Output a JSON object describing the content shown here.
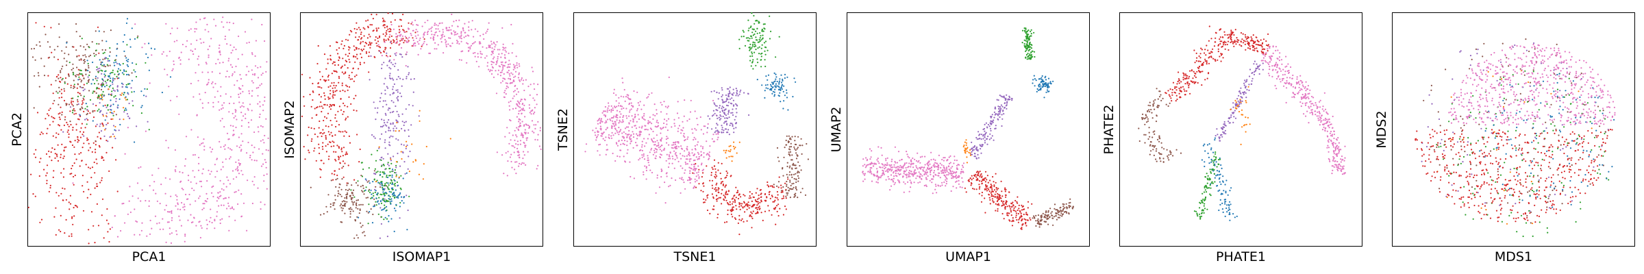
{
  "chart_data": [
    {
      "type": "scatter",
      "xlabel": "PCA1",
      "ylabel": "PCA2",
      "xlim": [
        0,
        100
      ],
      "ylim": [
        0,
        100
      ],
      "grid": false,
      "colors": [
        "#1f77b4",
        "#ff7f0e",
        "#2ca02c",
        "#d62728",
        "#9467bd",
        "#8c564b",
        "#e377c2"
      ],
      "clusters": [
        {
          "color": "#e377c2",
          "type": "arc",
          "cx": 58,
          "cy": 52,
          "rx": 36,
          "ry": 36,
          "a0": 250,
          "a1": 440,
          "spread": 11,
          "n": 650
        },
        {
          "color": "#d62728",
          "type": "blob",
          "cx": 18,
          "cy": 42,
          "sx": 9,
          "sy": 24,
          "n": 330
        },
        {
          "color": "#8c564b",
          "type": "blob",
          "cx": 22,
          "cy": 77,
          "sx": 9,
          "sy": 10,
          "n": 170
        },
        {
          "color": "#2ca02c",
          "type": "blob",
          "cx": 30,
          "cy": 70,
          "sx": 8,
          "sy": 9,
          "n": 110
        },
        {
          "color": "#1f77b4",
          "type": "blob",
          "cx": 38,
          "cy": 74,
          "sx": 8,
          "sy": 10,
          "n": 110
        },
        {
          "color": "#9467bd",
          "type": "blob",
          "cx": 32,
          "cy": 62,
          "sx": 7,
          "sy": 10,
          "n": 80
        },
        {
          "color": "#ff7f0e",
          "type": "blob",
          "cx": 33,
          "cy": 58,
          "sx": 4,
          "sy": 6,
          "n": 20
        }
      ]
    },
    {
      "type": "scatter",
      "xlabel": "ISOMAP1",
      "ylabel": "ISOMAP2",
      "xlim": [
        0,
        100
      ],
      "ylim": [
        0,
        100
      ],
      "grid": false,
      "colors": [
        "#1f77b4",
        "#ff7f0e",
        "#2ca02c",
        "#d62728",
        "#9467bd",
        "#8c564b",
        "#e377c2"
      ],
      "clusters": [
        {
          "color": "#d62728",
          "type": "arc",
          "cx": 38,
          "cy": 55,
          "rx": 28,
          "ry": 38,
          "a0": 80,
          "a1": 215,
          "spread": 5,
          "n": 460
        },
        {
          "color": "#e377c2",
          "type": "arc",
          "cx": 56,
          "cy": 54,
          "rx": 38,
          "ry": 38,
          "a0": -30,
          "a1": 115,
          "spread": 4,
          "n": 560
        },
        {
          "color": "#9467bd",
          "type": "blob",
          "cx": 37,
          "cy": 56,
          "sx": 4,
          "sy": 18,
          "n": 200
        },
        {
          "color": "#8c564b",
          "type": "blob",
          "cx": 20,
          "cy": 18,
          "sx": 5,
          "sy": 6,
          "n": 140
        },
        {
          "color": "#2ca02c",
          "type": "blob",
          "cx": 34,
          "cy": 25,
          "sx": 4,
          "sy": 6,
          "n": 130
        },
        {
          "color": "#1f77b4",
          "type": "blob",
          "cx": 36,
          "cy": 20,
          "sx": 4,
          "sy": 6,
          "n": 90
        },
        {
          "color": "#ff7f0e",
          "type": "blob",
          "cx": 47,
          "cy": 38,
          "sx": 9,
          "sy": 8,
          "n": 25
        }
      ]
    },
    {
      "type": "scatter",
      "xlabel": "TSNE1",
      "ylabel": "TSNE2",
      "xlim": [
        0,
        100
      ],
      "ylim": [
        0,
        100
      ],
      "grid": false,
      "colors": [
        "#1f77b4",
        "#ff7f0e",
        "#2ca02c",
        "#d62728",
        "#9467bd",
        "#8c564b",
        "#e377c2"
      ],
      "clusters": [
        {
          "color": "#e377c2",
          "type": "band",
          "x0": 10,
          "y0": 57,
          "x1": 55,
          "y1": 35,
          "width": 16,
          "n": 650
        },
        {
          "color": "#d62728",
          "type": "arc",
          "cx": 73,
          "cy": 34,
          "rx": 16,
          "ry": 18,
          "a0": 190,
          "a1": 325,
          "spread": 4,
          "n": 300
        },
        {
          "color": "#8c564b",
          "type": "band",
          "x0": 90,
          "y0": 20,
          "x1": 92,
          "y1": 47,
          "width": 5,
          "n": 130
        },
        {
          "color": "#9467bd",
          "type": "band",
          "x0": 62,
          "y0": 48,
          "x1": 65,
          "y1": 69,
          "width": 6,
          "n": 160
        },
        {
          "color": "#2ca02c",
          "type": "blob",
          "cx": 76,
          "cy": 90,
          "sx": 3,
          "sy": 6,
          "n": 120
        },
        {
          "color": "#1f77b4",
          "type": "blob",
          "cx": 85,
          "cy": 68,
          "sx": 3,
          "sy": 3,
          "n": 80
        },
        {
          "color": "#ff7f0e",
          "type": "blob",
          "cx": 65,
          "cy": 41,
          "sx": 2,
          "sy": 2,
          "n": 20
        }
      ]
    },
    {
      "type": "scatter",
      "xlabel": "UMAP1",
      "ylabel": "UMAP2",
      "xlim": [
        0,
        100
      ],
      "ylim": [
        0,
        100
      ],
      "grid": false,
      "colors": [
        "#1f77b4",
        "#ff7f0e",
        "#2ca02c",
        "#d62728",
        "#9467bd",
        "#8c564b",
        "#e377c2"
      ],
      "clusters": [
        {
          "color": "#e377c2",
          "type": "band",
          "x0": 5,
          "y0": 33,
          "x1": 48,
          "y1": 31,
          "width": 7,
          "n": 470
        },
        {
          "color": "#d62728",
          "type": "band",
          "x0": 52,
          "y0": 30,
          "x1": 76,
          "y1": 8,
          "width": 5,
          "n": 260
        },
        {
          "color": "#8c564b",
          "type": "band",
          "x0": 78,
          "y0": 9,
          "x1": 95,
          "y1": 16,
          "width": 3,
          "n": 120
        },
        {
          "color": "#9467bd",
          "type": "band",
          "x0": 52,
          "y0": 38,
          "x1": 67,
          "y1": 65,
          "width": 3,
          "n": 160
        },
        {
          "color": "#2ca02c",
          "type": "band",
          "x0": 75,
          "y0": 95,
          "x1": 76,
          "y1": 81,
          "width": 2,
          "n": 110
        },
        {
          "color": "#1f77b4",
          "type": "blob",
          "cx": 82,
          "cy": 70,
          "sx": 2,
          "sy": 2,
          "n": 70
        },
        {
          "color": "#ff7f0e",
          "type": "blob",
          "cx": 49,
          "cy": 41,
          "sx": 1,
          "sy": 3,
          "n": 22
        }
      ]
    },
    {
      "type": "scatter",
      "xlabel": "PHATE1",
      "ylabel": "PHATE2",
      "xlim": [
        0,
        100
      ],
      "ylim": [
        0,
        100
      ],
      "grid": false,
      "colors": [
        "#1f77b4",
        "#ff7f0e",
        "#2ca02c",
        "#d62728",
        "#9467bd",
        "#8c564b",
        "#e377c2"
      ],
      "clusters": [
        {
          "color": "#d62728",
          "type": "band",
          "x0": 20,
          "y0": 63,
          "x1": 45,
          "y1": 92,
          "width": 5,
          "n": 200
        },
        {
          "color": "#d62728",
          "type": "band",
          "x0": 45,
          "y0": 92,
          "x1": 62,
          "y1": 86,
          "width": 4,
          "n": 120
        },
        {
          "color": "#e377c2",
          "type": "band",
          "x0": 60,
          "y0": 85,
          "x1": 85,
          "y1": 55,
          "width": 5,
          "n": 220
        },
        {
          "color": "#e377c2",
          "type": "band",
          "x0": 86,
          "y0": 55,
          "x1": 93,
          "y1": 30,
          "width": 3,
          "n": 140
        },
        {
          "color": "#8c564b",
          "type": "arc",
          "cx": 19,
          "cy": 52,
          "rx": 9,
          "ry": 13,
          "a0": 100,
          "a1": 290,
          "spread": 2,
          "n": 110
        },
        {
          "color": "#9467bd",
          "type": "band",
          "x0": 40,
          "y0": 45,
          "x1": 58,
          "y1": 80,
          "width": 2,
          "n": 120
        },
        {
          "color": "#1f77b4",
          "type": "band",
          "x0": 35,
          "y0": 45,
          "x1": 46,
          "y1": 10,
          "width": 3,
          "n": 90
        },
        {
          "color": "#2ca02c",
          "type": "band",
          "x0": 40,
          "y0": 40,
          "x1": 32,
          "y1": 10,
          "width": 2,
          "n": 90
        },
        {
          "color": "#ff7f0e",
          "type": "blob",
          "cx": 50,
          "cy": 55,
          "sx": 2,
          "sy": 5,
          "n": 25
        }
      ]
    },
    {
      "type": "scatter",
      "xlabel": "MDS1",
      "ylabel": "MDS2",
      "xlim": [
        0,
        100
      ],
      "ylim": [
        0,
        100
      ],
      "grid": false,
      "colors": [
        "#1f77b4",
        "#ff7f0e",
        "#2ca02c",
        "#d62728",
        "#9467bd",
        "#8c564b",
        "#e377c2"
      ],
      "clusters": [
        {
          "color": "#8c564b",
          "type": "disk",
          "cx": 50,
          "cy": 50,
          "r": 42,
          "n": 120
        },
        {
          "color": "#9467bd",
          "type": "disk",
          "cx": 50,
          "cy": 50,
          "r": 42,
          "n": 90
        },
        {
          "color": "#2ca02c",
          "type": "disk",
          "cx": 55,
          "cy": 40,
          "r": 38,
          "n": 150
        },
        {
          "color": "#1f77b4",
          "type": "disk",
          "cx": 65,
          "cy": 45,
          "r": 30,
          "n": 110
        },
        {
          "color": "#ff7f0e",
          "type": "disk",
          "cx": 50,
          "cy": 45,
          "r": 38,
          "n": 25
        },
        {
          "color": "#d62728",
          "type": "halfdisk",
          "cx": 50,
          "cy": 50,
          "r": 42,
          "side": "bottom",
          "n": 520
        },
        {
          "color": "#e377c2",
          "type": "halfdisk",
          "cx": 58,
          "cy": 52,
          "r": 36,
          "side": "top",
          "n": 620
        }
      ]
    }
  ]
}
